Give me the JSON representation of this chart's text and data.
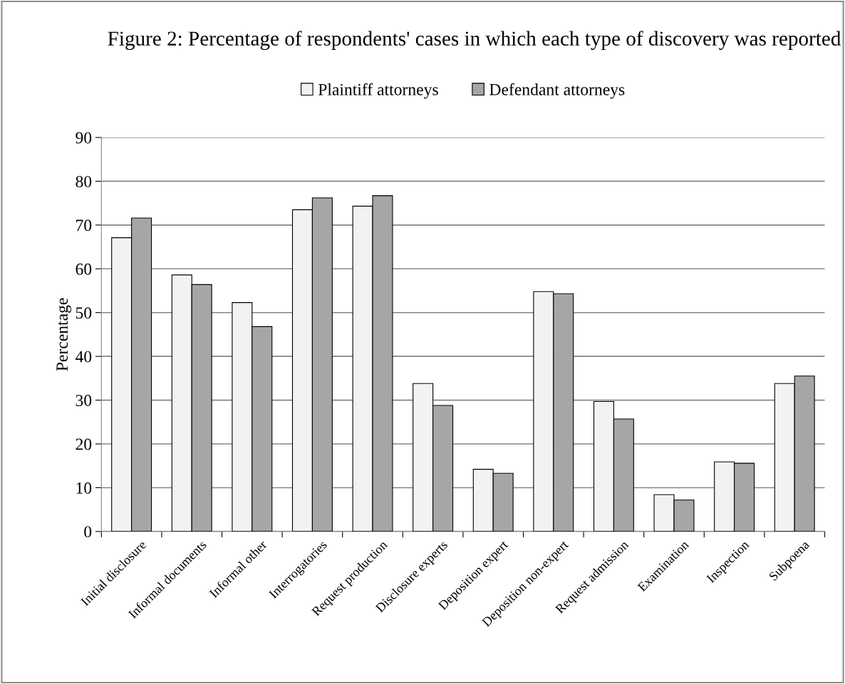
{
  "chart_data": {
    "type": "bar",
    "title": "Figure 2: Percentage of respondents' cases in which each type of discovery was reported",
    "ylabel": "Percentage",
    "categories": [
      "Initial disclosure",
      "Informal documents",
      "Informal other",
      "Interrogatories",
      "Request production",
      "Disclosure experts",
      "Deposition expert",
      "Deposition non-expert",
      "Request admission",
      "Examination",
      "Inspection",
      "Subpoena"
    ],
    "series": [
      {
        "name": "Plaintiff attorneys",
        "color": "#f2f2f2",
        "values": [
          67.1,
          58.6,
          52.3,
          73.5,
          74.3,
          33.8,
          14.2,
          54.8,
          29.7,
          8.4,
          15.9,
          33.8
        ]
      },
      {
        "name": "Defendant attorneys",
        "color": "#a6a6a6",
        "values": [
          71.6,
          56.4,
          46.8,
          76.2,
          76.7,
          28.8,
          13.3,
          54.3,
          25.7,
          7.2,
          15.6,
          35.5
        ]
      }
    ],
    "ylim": [
      0,
      90
    ],
    "yticks": [
      0,
      10,
      20,
      30,
      40,
      50,
      60,
      70,
      80,
      90
    ],
    "grid": "y",
    "legend": "top"
  }
}
